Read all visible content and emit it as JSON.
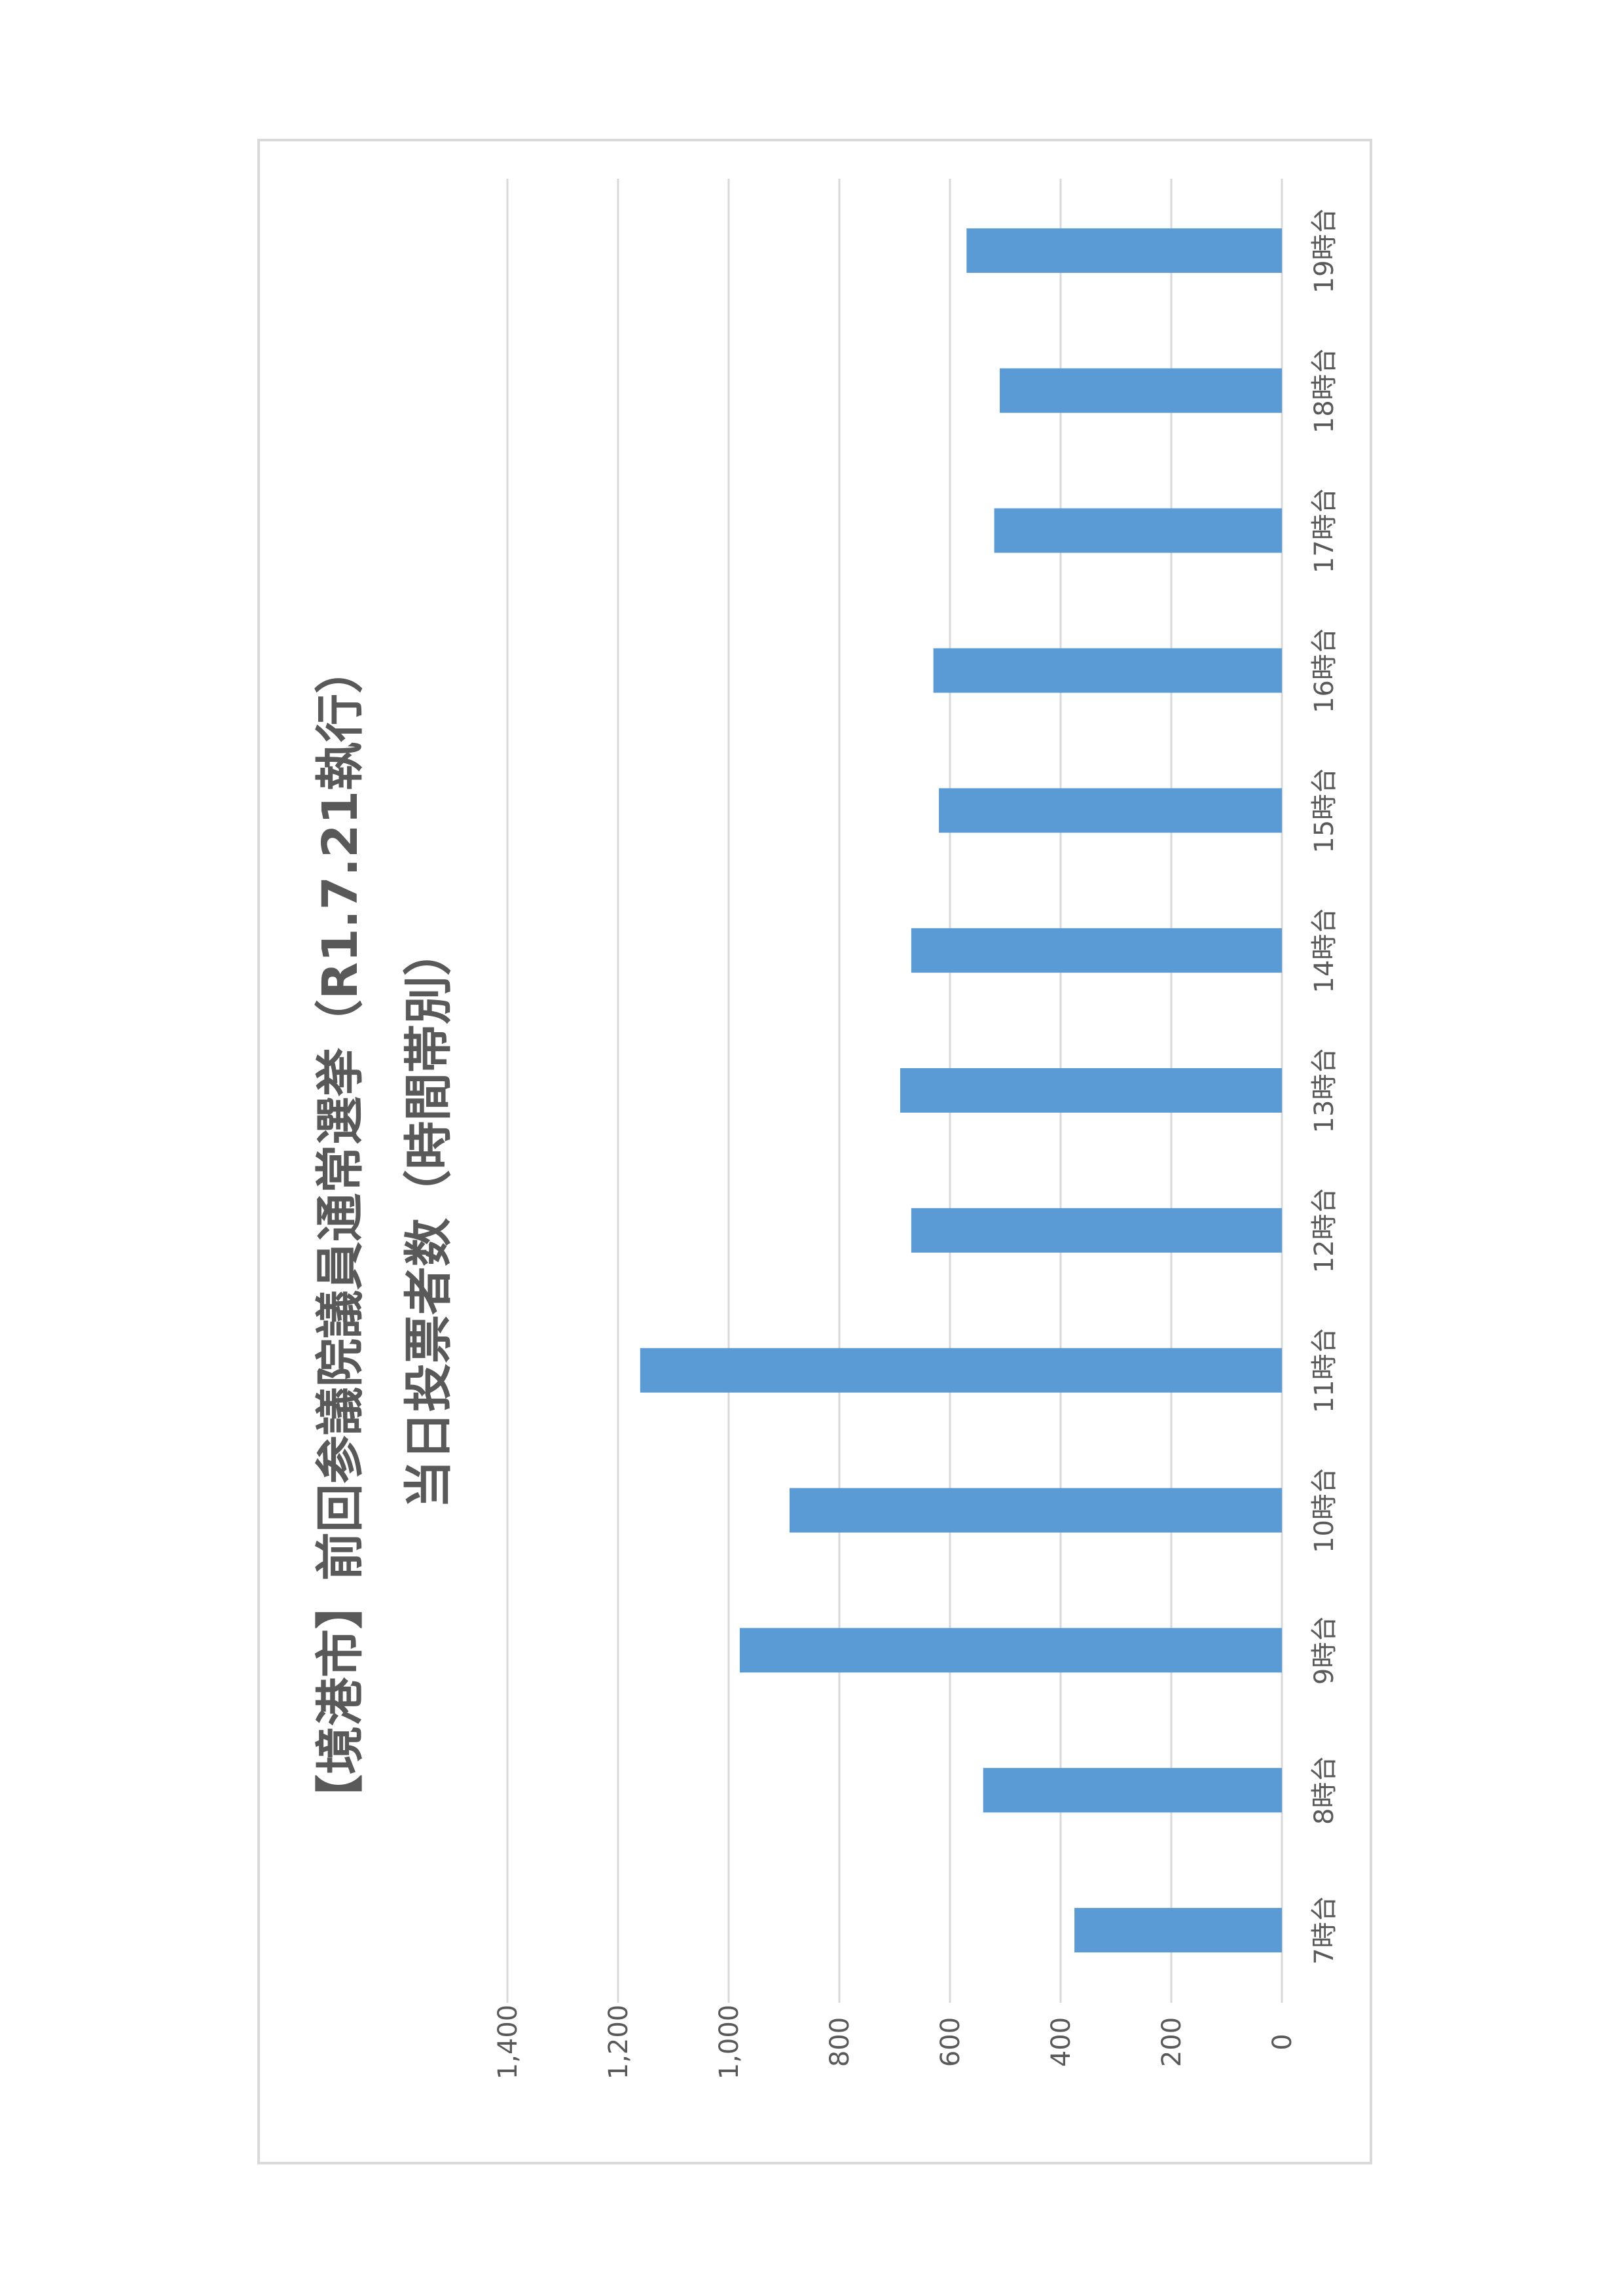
{
  "chart_data": {
    "type": "bar",
    "title": "【境港市】前回参議院議員通常選挙（R1.7.21執行）",
    "subtitle": "当日投票者数（時間帯別）",
    "categories": [
      "7時台",
      "8時台",
      "9時台",
      "10時台",
      "11時台",
      "12時台",
      "13時台",
      "14時台",
      "15時台",
      "16時台",
      "17時台",
      "18時台",
      "19時台"
    ],
    "values": [
      375,
      540,
      980,
      890,
      1160,
      670,
      690,
      670,
      620,
      630,
      520,
      510,
      570
    ],
    "value_ticks": [
      "0",
      "200",
      "400",
      "600",
      "800",
      "1,000",
      "1,200",
      "1,400"
    ],
    "ylim": [
      0,
      1400
    ],
    "grid": true,
    "bar_color": "#5b9bd5",
    "grid_color": "#d9d9d9",
    "text_color": "#595959"
  }
}
